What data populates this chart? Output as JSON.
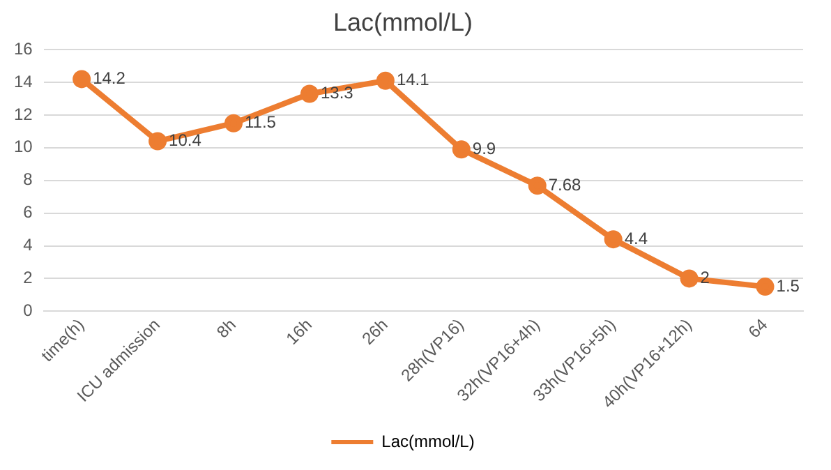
{
  "chart_data": {
    "type": "line",
    "title": "Lac(mmol/L)",
    "categories": [
      "time(h)",
      "ICU admission",
      "8h",
      "16h",
      "26h",
      "28h(VP16)",
      "32h(VP16+4h)",
      "33h(VP16+5h)",
      "40h(VP16+12h)",
      "64"
    ],
    "series": [
      {
        "name": "Lac(mmol/L)",
        "color": "#ed7d31",
        "values": [
          14.2,
          10.4,
          11.5,
          13.3,
          14.1,
          9.9,
          7.68,
          4.4,
          2,
          1.5
        ]
      }
    ],
    "ylim": [
      0,
      16
    ],
    "yticks": [
      0,
      2,
      4,
      6,
      8,
      10,
      12,
      14,
      16
    ],
    "grid": "y",
    "legend": "bottom",
    "marker": "circle",
    "line_style": "solid",
    "data_labels": true
  }
}
